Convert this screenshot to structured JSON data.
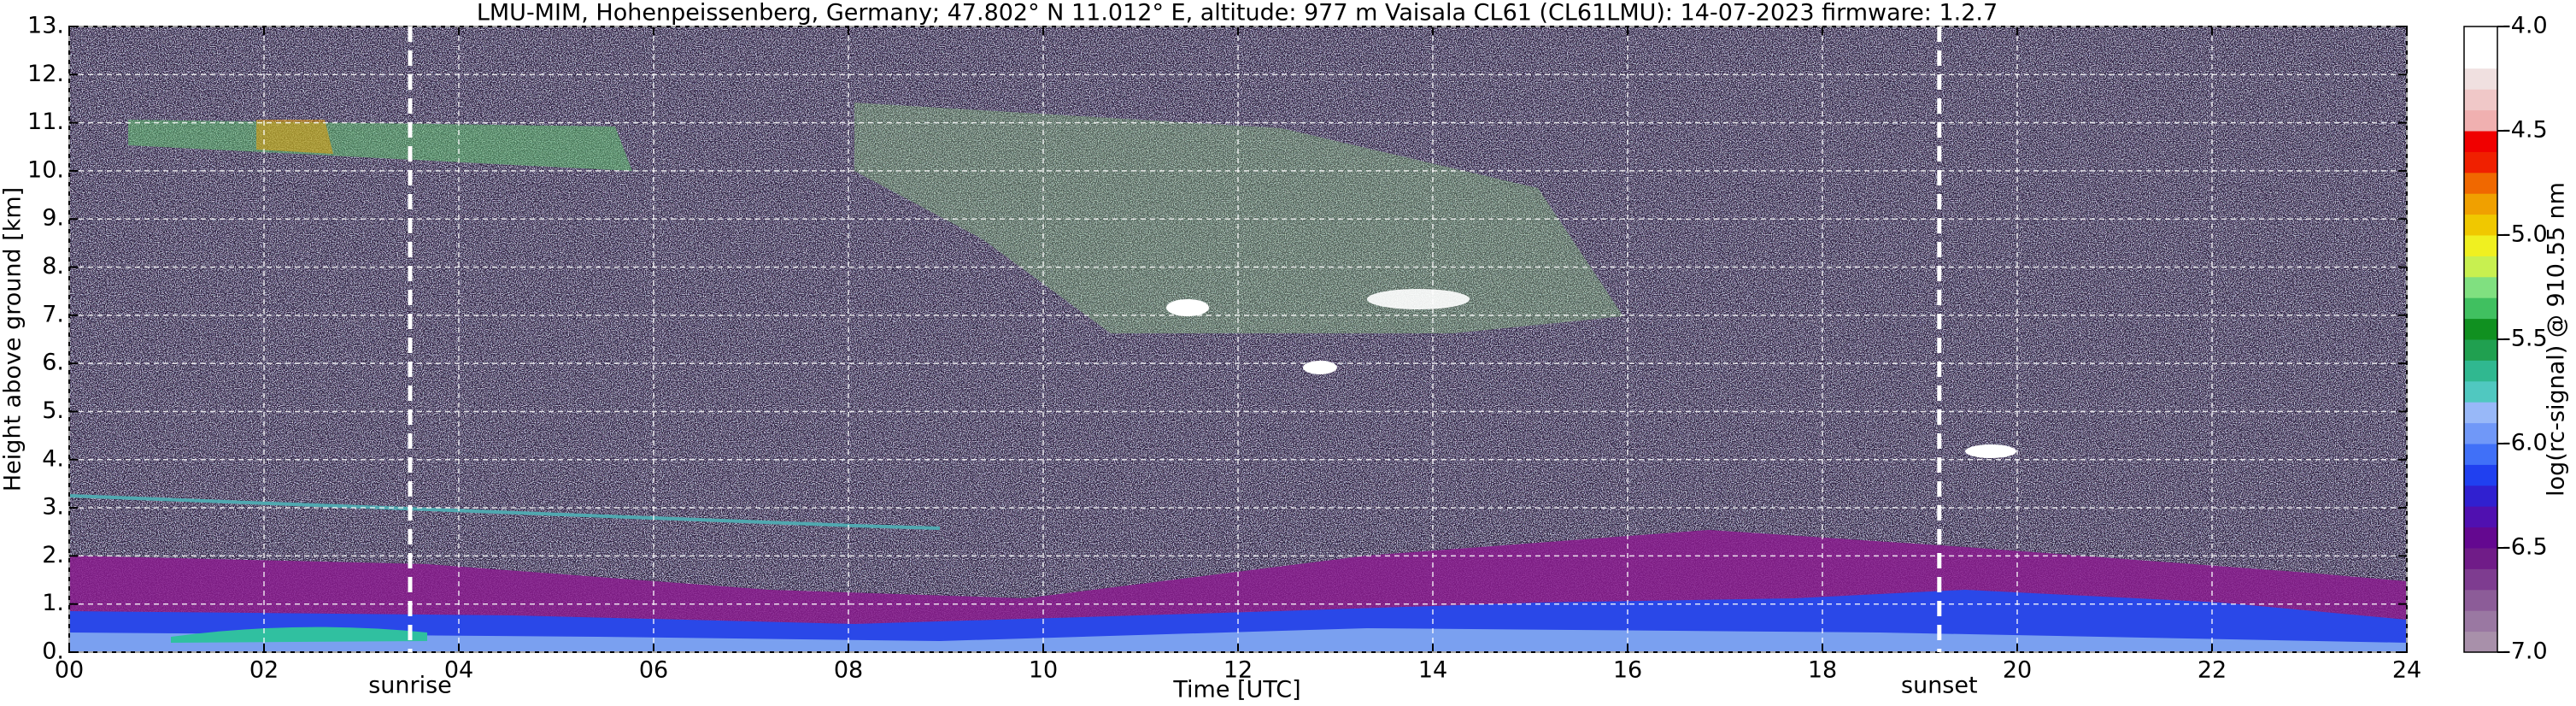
{
  "chart_data": {
    "type": "heatmap",
    "title": "LMU-MIM, Hohenpeissenberg, Germany; 47.802° N 11.012° E, altitude: 977 m    Vaisala CL61 (CL61LMU): 14-07-2023    firmware: 1.2.7",
    "xlabel": "Time [UTC]",
    "ylabel": "Height above ground [km]",
    "xlim": [
      0,
      24
    ],
    "xticks": [
      {
        "value": 0,
        "label": "00"
      },
      {
        "value": 2,
        "label": "02"
      },
      {
        "value": 4,
        "label": "04"
      },
      {
        "value": 6,
        "label": "06"
      },
      {
        "value": 8,
        "label": "08"
      },
      10,
      12,
      14,
      16,
      18,
      20,
      22,
      24
    ],
    "ylim": [
      0,
      13
    ],
    "yticks": [
      {
        "value": 0,
        "label": "0."
      },
      {
        "value": 1,
        "label": "1."
      },
      {
        "value": 2,
        "label": "2."
      },
      {
        "value": 3,
        "label": "3."
      },
      {
        "value": 4,
        "label": "4."
      },
      {
        "value": 5,
        "label": "5."
      },
      {
        "value": 6,
        "label": "6."
      },
      {
        "value": 7,
        "label": "7."
      },
      {
        "value": 8,
        "label": "8."
      },
      {
        "value": 9,
        "label": "9."
      },
      {
        "value": 10,
        "label": "10."
      },
      {
        "value": 11,
        "label": "11."
      },
      {
        "value": 12,
        "label": "12."
      },
      {
        "value": 13,
        "label": "13."
      }
    ],
    "grid": true,
    "annotations": [
      {
        "text": "sunrise",
        "x": 3.5
      },
      {
        "text": "sunset",
        "x": 19.2
      }
    ],
    "colorbar": {
      "label": "log(rc-signal) @ 910.55 nm",
      "lim": [
        -7.0,
        -4.0
      ],
      "ticks": [
        {
          "value": -4.0,
          "label": "-4.0"
        },
        -4.5,
        {
          "value": -5.0,
          "label": "-5.0"
        },
        -5.5,
        {
          "value": -6.0,
          "label": "-6.0"
        },
        -6.5,
        {
          "value": -7.0,
          "label": "-7.0"
        }
      ],
      "colors": [
        "#a890aa",
        "#9a78a2",
        "#8c5c98",
        "#7e3c90",
        "#701c88",
        "#640890",
        "#5010b0",
        "#3020d0",
        "#2040f0",
        "#4070f8",
        "#7098f8",
        "#98b8f8",
        "#50c8c0",
        "#30b890",
        "#20a050",
        "#109020",
        "#40c060",
        "#80e080",
        "#c8f050",
        "#f0f020",
        "#f0c800",
        "#f0a000",
        "#f06800",
        "#f02000",
        "#f00000",
        "#f0b0b0",
        "#f0c8c8",
        "#f0e0e0",
        "#ffffff",
        "#ffffff"
      ]
    }
  }
}
